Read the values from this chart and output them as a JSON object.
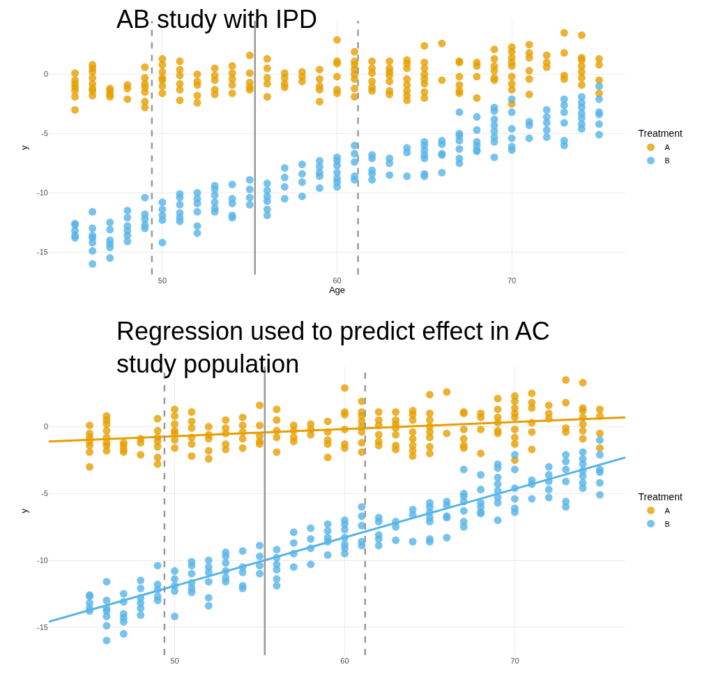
{
  "chart_data": [
    {
      "type": "scatter",
      "title": "AB study with IPD",
      "xlabel": "Age",
      "ylabel": "y",
      "legend_title": "Treatment",
      "legend": "right",
      "grid": true,
      "marker": "circle",
      "xlim": [
        43.5,
        76.5
      ],
      "ylim": [
        -16.9,
        4.5
      ],
      "xticks": [
        50,
        60,
        70
      ],
      "yticks": [
        -15,
        -10,
        -5,
        0
      ],
      "ref_lines": [
        {
          "axis": "x",
          "value": 49.4,
          "color": "#999999",
          "line_style": "dashed"
        },
        {
          "axis": "x",
          "value": 55.3,
          "color": "#999999",
          "line_style": "solid"
        },
        {
          "axis": "x",
          "value": 61.2,
          "color": "#999999",
          "line_style": "dashed"
        }
      ],
      "series": [
        {
          "name": "A",
          "color": "#e69f00",
          "x": [
            45,
            45,
            45,
            45,
            45,
            45,
            45,
            46,
            46,
            46,
            46,
            46,
            46,
            46,
            46,
            47,
            47,
            47,
            47,
            48,
            48,
            48,
            49,
            49,
            49,
            49,
            49,
            49,
            49,
            50,
            50,
            50,
            50,
            50,
            50,
            50,
            51,
            51,
            51,
            51,
            51,
            51,
            52,
            52,
            52,
            52,
            52,
            53,
            53,
            53,
            53,
            53,
            54,
            54,
            54,
            54,
            54,
            55,
            55,
            55,
            55,
            55,
            56,
            56,
            56,
            56,
            56,
            57,
            57,
            57,
            57,
            58,
            58,
            58,
            59,
            59,
            59,
            59,
            59,
            60,
            60,
            60,
            60,
            60,
            60,
            61,
            61,
            61,
            61,
            61,
            61,
            61,
            61,
            62,
            62,
            62,
            62,
            62,
            62,
            63,
            63,
            63,
            63,
            63,
            63,
            63,
            64,
            64,
            64,
            64,
            64,
            64,
            64,
            64,
            65,
            65,
            65,
            65,
            65,
            65,
            65,
            65,
            66,
            66,
            67,
            67,
            67,
            67,
            67,
            67,
            68,
            68,
            68,
            68,
            69,
            69,
            69,
            69,
            69,
            69,
            70,
            70,
            70,
            70,
            70,
            70,
            70,
            70,
            70,
            71,
            71,
            71,
            71,
            71,
            71,
            72,
            72,
            72,
            73,
            73,
            73,
            73,
            74,
            74,
            74,
            74,
            74,
            74,
            74,
            75,
            75,
            75,
            75
          ],
          "values": [
            0.1,
            -0.5,
            -0.8,
            -1.1,
            -1.4,
            -1.9,
            -3.0,
            0.8,
            0.5,
            0.2,
            -0.3,
            -0.8,
            -1.2,
            -1.4,
            -1.8,
            -1.2,
            -1.4,
            -1.7,
            -1.9,
            -0.9,
            -1.2,
            -2.1,
            0.6,
            -0.3,
            -0.8,
            -1.1,
            -1.5,
            -2.3,
            -2.8,
            1.3,
            0.8,
            0.2,
            -0.3,
            -0.5,
            -1.0,
            -1.6,
            1.1,
            0.4,
            -0.1,
            -0.8,
            -1.3,
            -2.2,
            0.0,
            -0.6,
            -0.9,
            -1.8,
            -2.4,
            0.5,
            -0.1,
            -0.5,
            -1.3,
            -1.7,
            0.7,
            0.1,
            -0.4,
            -0.9,
            -1.6,
            1.6,
            0.1,
            -0.7,
            -1.1,
            -1.3,
            1.3,
            0.5,
            -0.3,
            -0.8,
            -1.9,
            0.1,
            -0.3,
            -0.8,
            -1.1,
            0.2,
            -0.2,
            -0.6,
            0.4,
            -0.4,
            -1.0,
            -1.3,
            -2.3,
            2.9,
            1.1,
            0.9,
            -0.2,
            -1.3,
            -1.6,
            1.9,
            1.1,
            0.8,
            0.4,
            0.0,
            -0.4,
            -1.2,
            -1.9,
            1.1,
            0.5,
            0.1,
            -0.6,
            -1.1,
            -1.4,
            1.1,
            0.5,
            0.2,
            -0.1,
            -0.6,
            -1.4,
            -1.7,
            1.2,
            0.9,
            0.5,
            -0.4,
            -0.9,
            -1.4,
            -1.8,
            -2.2,
            2.4,
            1.0,
            0.5,
            0.0,
            -0.4,
            -0.8,
            -1.5,
            -2.0,
            2.6,
            -0.5,
            1.1,
            1.0,
            -0.2,
            -0.9,
            -1.4,
            -1.6,
            1.0,
            0.7,
            -0.2,
            -2.0,
            2.1,
            1.3,
            0.7,
            0.3,
            -0.3,
            -0.5,
            2.3,
            1.9,
            1.4,
            1.0,
            0.7,
            -0.2,
            -0.8,
            -1.3,
            -2.5,
            2.5,
            1.8,
            1.4,
            0.3,
            -0.4,
            -1.7,
            1.6,
            1.0,
            0.6,
            3.5,
            1.8,
            -0.1,
            -0.4,
            3.3,
            1.4,
            1.2,
            0.7,
            0.2,
            -0.3,
            -0.9,
            1.3,
            0.8,
            -0.5,
            -1.6
          ]
        },
        {
          "name": "B",
          "color": "#56b4e9",
          "x": [
            45,
            45,
            45,
            45,
            45,
            46,
            46,
            46,
            46,
            46,
            46,
            46,
            47,
            47,
            47,
            47,
            47,
            47,
            48,
            48,
            48,
            48,
            48,
            48,
            49,
            49,
            49,
            49,
            49,
            50,
            50,
            50,
            50,
            50,
            51,
            51,
            51,
            51,
            51,
            51,
            52,
            52,
            52,
            52,
            52,
            52,
            53,
            53,
            53,
            53,
            53,
            53,
            54,
            54,
            54,
            54,
            54,
            55,
            55,
            55,
            55,
            56,
            56,
            56,
            56,
            56,
            56,
            57,
            57,
            57,
            57,
            58,
            58,
            58,
            58,
            59,
            59,
            59,
            59,
            59,
            60,
            60,
            60,
            60,
            60,
            60,
            60,
            61,
            61,
            61,
            61,
            61,
            62,
            62,
            62,
            62,
            62,
            63,
            63,
            63,
            64,
            64,
            64,
            65,
            65,
            65,
            65,
            65,
            65,
            65,
            66,
            66,
            66,
            66,
            66,
            67,
            67,
            67,
            67,
            67,
            67,
            67,
            68,
            68,
            68,
            68,
            68,
            68,
            69,
            69,
            69,
            69,
            69,
            69,
            69,
            69,
            70,
            70,
            70,
            70,
            70,
            70,
            71,
            71,
            71,
            72,
            72,
            72,
            72,
            72,
            73,
            73,
            73,
            73,
            73,
            73,
            74,
            74,
            74,
            74,
            74,
            74,
            74,
            75,
            75,
            75,
            75,
            75,
            75
          ],
          "values": [
            -12.6,
            -12.7,
            -13.2,
            -13.6,
            -13.8,
            -11.6,
            -13.0,
            -13.6,
            -13.8,
            -14.2,
            -14.9,
            -16.0,
            -12.5,
            -13.1,
            -14.0,
            -14.3,
            -14.6,
            -15.5,
            -11.5,
            -12.1,
            -12.8,
            -13.2,
            -13.6,
            -14.1,
            -10.4,
            -11.8,
            -12.2,
            -12.7,
            -13.0,
            -10.8,
            -11.4,
            -11.9,
            -12.3,
            -14.2,
            -10.1,
            -10.4,
            -11.0,
            -11.7,
            -12.1,
            -12.4,
            -10.0,
            -10.5,
            -10.9,
            -11.6,
            -12.8,
            -13.4,
            -9.4,
            -9.7,
            -10.2,
            -10.8,
            -11.3,
            -11.6,
            -9.3,
            -10.5,
            -10.9,
            -11.9,
            -12.1,
            -8.9,
            -9.7,
            -10.4,
            -11.0,
            -9.2,
            -9.8,
            -10.3,
            -10.7,
            -11.4,
            -11.9,
            -7.9,
            -8.7,
            -9.5,
            -10.5,
            -7.6,
            -8.4,
            -9.1,
            -10.3,
            -7.3,
            -7.8,
            -8.3,
            -8.6,
            -9.6,
            -7.0,
            -7.3,
            -7.7,
            -8.3,
            -8.8,
            -9.1,
            -9.5,
            -6.0,
            -6.7,
            -7.4,
            -8.6,
            -8.9,
            -6.8,
            -7.1,
            -8.1,
            -8.4,
            -8.9,
            -7.1,
            -7.5,
            -8.5,
            -6.2,
            -6.6,
            -8.6,
            -5.7,
            -6.0,
            -6.4,
            -6.8,
            -7.1,
            -8.4,
            -8.6,
            -5.6,
            -5.9,
            -6.7,
            -6.8,
            -8.3,
            -3.2,
            -5.0,
            -5.2,
            -5.6,
            -6.3,
            -7.1,
            -7.5,
            -3.6,
            -4.7,
            -5.7,
            -6.0,
            -6.4,
            -6.5,
            -2.8,
            -3.1,
            -3.8,
            -4.3,
            -4.8,
            -5.3,
            -5.7,
            -7.0,
            -2.1,
            -3.2,
            -4.6,
            -5.4,
            -6.1,
            -6.4,
            -4.0,
            -4.3,
            -5.4,
            -3.0,
            -3.6,
            -4.1,
            -4.7,
            -5.3,
            -2.1,
            -2.6,
            -3.2,
            -4.1,
            -5.6,
            -6.0,
            -1.9,
            -2.4,
            -2.8,
            -3.3,
            -3.7,
            -4.2,
            -4.6,
            -1.0,
            -2.1,
            -3.2,
            -3.4,
            -4.2,
            -5.1
          ]
        }
      ]
    },
    {
      "type": "scatter",
      "title": "Regression used to predict effect in AC study population",
      "ylabel": "y",
      "legend_title": "Treatment",
      "legend": "right",
      "grid": true,
      "marker": "circle",
      "xlim": [
        42.6,
        76.5
      ],
      "ylim": [
        -17.1,
        4.5
      ],
      "xticks": [
        50,
        60,
        70
      ],
      "yticks": [
        -15,
        -10,
        -5,
        0
      ],
      "ref_lines": [
        {
          "axis": "x",
          "value": 49.4,
          "color": "#999999",
          "line_style": "dashed"
        },
        {
          "axis": "x",
          "value": 55.3,
          "color": "#999999",
          "line_style": "solid"
        },
        {
          "axis": "x",
          "value": 61.2,
          "color": "#999999",
          "line_style": "dashed"
        }
      ],
      "series": [
        {
          "name": "A",
          "color": "#e69f00",
          "x": [
            45,
            45,
            45,
            45,
            45,
            45,
            45,
            46,
            46,
            46,
            46,
            46,
            46,
            46,
            46,
            47,
            47,
            47,
            47,
            48,
            48,
            48,
            49,
            49,
            49,
            49,
            49,
            49,
            49,
            50,
            50,
            50,
            50,
            50,
            50,
            50,
            51,
            51,
            51,
            51,
            51,
            51,
            52,
            52,
            52,
            52,
            52,
            53,
            53,
            53,
            53,
            53,
            54,
            54,
            54,
            54,
            54,
            55,
            55,
            55,
            55,
            55,
            56,
            56,
            56,
            56,
            56,
            57,
            57,
            57,
            57,
            58,
            58,
            58,
            59,
            59,
            59,
            59,
            59,
            60,
            60,
            60,
            60,
            60,
            60,
            61,
            61,
            61,
            61,
            61,
            61,
            61,
            61,
            62,
            62,
            62,
            62,
            62,
            62,
            63,
            63,
            63,
            63,
            63,
            63,
            63,
            64,
            64,
            64,
            64,
            64,
            64,
            64,
            64,
            65,
            65,
            65,
            65,
            65,
            65,
            65,
            65,
            66,
            66,
            67,
            67,
            67,
            67,
            67,
            67,
            68,
            68,
            68,
            68,
            69,
            69,
            69,
            69,
            69,
            69,
            70,
            70,
            70,
            70,
            70,
            70,
            70,
            70,
            70,
            71,
            71,
            71,
            71,
            71,
            71,
            72,
            72,
            72,
            73,
            73,
            73,
            73,
            74,
            74,
            74,
            74,
            74,
            74,
            74,
            75,
            75,
            75,
            75
          ],
          "values": [
            0.1,
            -0.5,
            -0.8,
            -1.1,
            -1.4,
            -1.9,
            -3.0,
            0.8,
            0.5,
            0.2,
            -0.3,
            -0.8,
            -1.2,
            -1.4,
            -1.8,
            -1.2,
            -1.4,
            -1.7,
            -1.9,
            -0.9,
            -1.2,
            -2.1,
            0.6,
            -0.3,
            -0.8,
            -1.1,
            -1.5,
            -2.3,
            -2.8,
            1.3,
            0.8,
            0.2,
            -0.3,
            -0.5,
            -1.0,
            -1.6,
            1.1,
            0.4,
            -0.1,
            -0.8,
            -1.3,
            -2.2,
            0.0,
            -0.6,
            -0.9,
            -1.8,
            -2.4,
            0.5,
            -0.1,
            -0.5,
            -1.3,
            -1.7,
            0.7,
            0.1,
            -0.4,
            -0.9,
            -1.6,
            1.6,
            0.1,
            -0.7,
            -1.1,
            -1.3,
            1.3,
            0.5,
            -0.3,
            -0.8,
            -1.9,
            0.1,
            -0.3,
            -0.8,
            -1.1,
            0.2,
            -0.2,
            -0.6,
            0.4,
            -0.4,
            -1.0,
            -1.3,
            -2.3,
            2.9,
            1.1,
            0.9,
            -0.2,
            -1.3,
            -1.6,
            1.9,
            1.1,
            0.8,
            0.4,
            0.0,
            -0.4,
            -1.2,
            -1.9,
            1.1,
            0.5,
            0.1,
            -0.6,
            -1.1,
            -1.4,
            1.1,
            0.5,
            0.2,
            -0.1,
            -0.6,
            -1.4,
            -1.7,
            1.2,
            0.9,
            0.5,
            -0.4,
            -0.9,
            -1.4,
            -1.8,
            -2.2,
            2.4,
            1.0,
            0.5,
            0.0,
            -0.4,
            -0.8,
            -1.5,
            -2.0,
            2.6,
            -0.5,
            1.1,
            1.0,
            -0.2,
            -0.9,
            -1.4,
            -1.6,
            1.0,
            0.7,
            -0.2,
            -2.0,
            2.1,
            1.3,
            0.7,
            0.3,
            -0.3,
            -0.5,
            2.3,
            1.9,
            1.4,
            1.0,
            0.7,
            -0.2,
            -0.8,
            -1.3,
            -2.5,
            2.5,
            1.8,
            1.4,
            0.3,
            -0.4,
            -1.7,
            1.6,
            1.0,
            0.6,
            3.5,
            1.8,
            -0.1,
            -0.4,
            3.3,
            1.4,
            1.2,
            0.7,
            0.2,
            -0.3,
            -0.9,
            1.3,
            0.8,
            -0.5,
            -1.6
          ]
        },
        {
          "name": "B",
          "color": "#56b4e9",
          "x": [
            45,
            45,
            45,
            45,
            45,
            46,
            46,
            46,
            46,
            46,
            46,
            46,
            47,
            47,
            47,
            47,
            47,
            47,
            48,
            48,
            48,
            48,
            48,
            48,
            49,
            49,
            49,
            49,
            49,
            50,
            50,
            50,
            50,
            50,
            51,
            51,
            51,
            51,
            51,
            51,
            52,
            52,
            52,
            52,
            52,
            52,
            53,
            53,
            53,
            53,
            53,
            53,
            54,
            54,
            54,
            54,
            54,
            55,
            55,
            55,
            55,
            56,
            56,
            56,
            56,
            56,
            56,
            57,
            57,
            57,
            57,
            58,
            58,
            58,
            58,
            59,
            59,
            59,
            59,
            59,
            60,
            60,
            60,
            60,
            60,
            60,
            60,
            61,
            61,
            61,
            61,
            61,
            62,
            62,
            62,
            62,
            62,
            63,
            63,
            63,
            64,
            64,
            64,
            65,
            65,
            65,
            65,
            65,
            65,
            65,
            66,
            66,
            66,
            66,
            66,
            67,
            67,
            67,
            67,
            67,
            67,
            67,
            68,
            68,
            68,
            68,
            68,
            68,
            69,
            69,
            69,
            69,
            69,
            69,
            69,
            69,
            70,
            70,
            70,
            70,
            70,
            70,
            71,
            71,
            71,
            72,
            72,
            72,
            72,
            72,
            73,
            73,
            73,
            73,
            73,
            73,
            74,
            74,
            74,
            74,
            74,
            74,
            74,
            75,
            75,
            75,
            75,
            75,
            75
          ],
          "values": [
            -12.6,
            -12.7,
            -13.2,
            -13.6,
            -13.8,
            -11.6,
            -13.0,
            -13.6,
            -13.8,
            -14.2,
            -14.9,
            -16.0,
            -12.5,
            -13.1,
            -14.0,
            -14.3,
            -14.6,
            -15.5,
            -11.5,
            -12.1,
            -12.8,
            -13.2,
            -13.6,
            -14.1,
            -10.4,
            -11.8,
            -12.2,
            -12.7,
            -13.0,
            -10.8,
            -11.4,
            -11.9,
            -12.3,
            -14.2,
            -10.1,
            -10.4,
            -11.0,
            -11.7,
            -12.1,
            -12.4,
            -10.0,
            -10.5,
            -10.9,
            -11.6,
            -12.8,
            -13.4,
            -9.4,
            -9.7,
            -10.2,
            -10.8,
            -11.3,
            -11.6,
            -9.3,
            -10.5,
            -10.9,
            -11.9,
            -12.1,
            -8.9,
            -9.7,
            -10.4,
            -11.0,
            -9.2,
            -9.8,
            -10.3,
            -10.7,
            -11.4,
            -11.9,
            -7.9,
            -8.7,
            -9.5,
            -10.5,
            -7.6,
            -8.4,
            -9.1,
            -10.3,
            -7.3,
            -7.8,
            -8.3,
            -8.6,
            -9.6,
            -7.0,
            -7.3,
            -7.7,
            -8.3,
            -8.8,
            -9.1,
            -9.5,
            -6.0,
            -6.7,
            -7.4,
            -8.6,
            -8.9,
            -6.8,
            -7.1,
            -8.1,
            -8.4,
            -8.9,
            -7.1,
            -7.5,
            -8.5,
            -6.2,
            -6.6,
            -8.6,
            -5.7,
            -6.0,
            -6.4,
            -6.8,
            -7.1,
            -8.4,
            -8.6,
            -5.6,
            -5.9,
            -6.7,
            -6.8,
            -8.3,
            -3.2,
            -5.0,
            -5.2,
            -5.6,
            -6.3,
            -7.1,
            -7.5,
            -3.6,
            -4.7,
            -5.7,
            -6.0,
            -6.4,
            -6.5,
            -2.8,
            -3.1,
            -3.8,
            -4.3,
            -4.8,
            -5.3,
            -5.7,
            -7.0,
            -2.1,
            -3.2,
            -4.6,
            -5.4,
            -6.1,
            -6.4,
            -4.0,
            -4.3,
            -5.4,
            -3.0,
            -3.6,
            -4.1,
            -4.7,
            -5.3,
            -2.1,
            -2.6,
            -3.2,
            -4.1,
            -5.6,
            -6.0,
            -1.9,
            -2.4,
            -2.8,
            -3.3,
            -3.7,
            -4.2,
            -4.6,
            -1.0,
            -2.1,
            -3.2,
            -3.4,
            -4.2,
            -5.1
          ]
        },
        {
          "type": "line",
          "color": "#e69f00",
          "line_style": "solid",
          "marker": "none",
          "x": [
            42.6,
            76.5
          ],
          "values": [
            -1.1,
            0.7
          ]
        },
        {
          "type": "line",
          "color": "#56b4e9",
          "line_style": "solid",
          "marker": "none",
          "x": [
            42.6,
            76.5
          ],
          "values": [
            -14.6,
            -2.3
          ]
        }
      ]
    }
  ]
}
